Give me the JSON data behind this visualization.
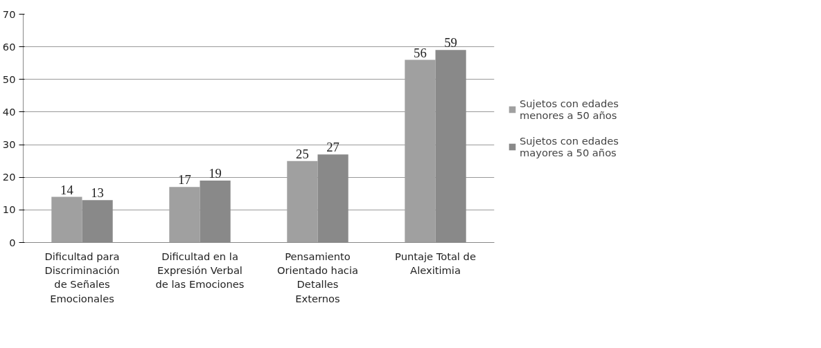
{
  "chart_data": {
    "type": "bar",
    "categories": [
      "Dificultad para Discriminación de Señales Emocionales",
      "Dificultad en la Expresión Verbal de las Emociones",
      "Pensamiento Orientado hacia Detalles Externos",
      "Puntaje Total de Alexitimia"
    ],
    "series": [
      {
        "name": "Sujetos con edades menores a 50 años",
        "color": "#a0a0a0",
        "values": [
          14,
          17,
          25,
          56
        ]
      },
      {
        "name": "Sujetos con edades mayores a 50 años",
        "color": "#898989",
        "values": [
          13,
          19,
          27,
          59
        ]
      }
    ],
    "ylim": [
      0,
      70
    ],
    "yticks": [
      0,
      10,
      20,
      30,
      40,
      50,
      60,
      70
    ],
    "grid": "y",
    "legend": "right",
    "data_labels": true
  }
}
